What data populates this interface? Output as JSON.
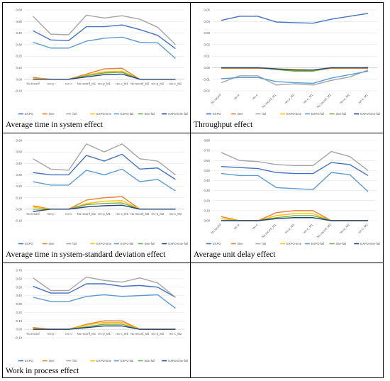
{
  "colors": {
    "EXPO": "#4472c4",
    "time": "#ed7d31",
    "fail": "#a5a5a5",
    "EXPO-time": "#ffc000",
    "EXPO-fail": "#5b9bd5",
    "time-fail": "#70ad47",
    "EXPO-time-fail": "#264478"
  },
  "legend_labels": [
    "EXPO",
    "time",
    "fail",
    "EXPO-time",
    "EXPO-fail",
    "time-fail",
    "EXPO-time-fail"
  ],
  "chart_data": [
    {
      "type": "line",
      "caption": "Average time in system effect",
      "categories": [
        "No reconf",
        "rec-p",
        "rec-c",
        "No reconf_M1",
        "rec-p_M1",
        "rec-c_M1",
        "No reconf_M2",
        "rec-p_M2",
        "rec-c_M2"
      ],
      "ylim": [
        -0.1,
        0.6
      ],
      "yticks": [
        -0.1,
        0.0,
        0.1,
        0.2,
        0.3,
        0.4,
        0.5,
        0.6
      ],
      "ytick_labels": [
        "-0.10",
        "0.00",
        "0.10",
        "0.20",
        "0.30",
        "0.40",
        "0.50",
        "0.60"
      ],
      "series": [
        {
          "name": "EXPO",
          "values": [
            0.42,
            0.34,
            0.335,
            0.455,
            0.455,
            0.47,
            0.43,
            0.38,
            0.265
          ]
        },
        {
          "name": "time",
          "values": [
            0.015,
            0.0,
            0.0,
            0.045,
            0.09,
            0.095,
            0.0,
            0.0,
            0.0
          ]
        },
        {
          "name": "fail",
          "values": [
            0.545,
            0.39,
            0.385,
            0.555,
            0.53,
            0.55,
            0.52,
            0.45,
            0.3
          ]
        },
        {
          "name": "EXPO-time",
          "values": [
            0.005,
            0.0,
            0.0,
            0.035,
            0.065,
            0.07,
            0.0,
            0.0,
            0.0
          ]
        },
        {
          "name": "EXPO-fail",
          "values": [
            0.32,
            0.27,
            0.27,
            0.33,
            0.355,
            0.365,
            0.32,
            0.315,
            0.18
          ]
        },
        {
          "name": "time-fail",
          "values": [
            0.0,
            0.0,
            0.0,
            0.03,
            0.055,
            0.06,
            0.0,
            0.0,
            0.0
          ]
        },
        {
          "name": "EXPO-time-fail",
          "values": [
            0.0,
            0.0,
            0.0,
            0.02,
            0.04,
            0.045,
            0.0,
            0.0,
            0.0
          ]
        }
      ]
    },
    {
      "type": "line",
      "caption": "Throughput effect",
      "categories": [
        "No reconf",
        "rec-p",
        "rec-c",
        "No reconf_M1",
        "rec-p_M1",
        "rec-c_M1",
        "No reconf_M2",
        "rec-p_M2",
        "rec-c_M2"
      ],
      "ylim": [
        -0.02,
        0.05
      ],
      "yticks": [
        -0.02,
        -0.01,
        0.0,
        0.01,
        0.02,
        0.03,
        0.04,
        0.05
      ],
      "ytick_labels": [
        "-0.02",
        "-0.01",
        "0.00",
        "0.01",
        "0.02",
        "0.03",
        "0.04",
        "0.05"
      ],
      "series": [
        {
          "name": "EXPO",
          "values": [
            0.041,
            0.0445,
            0.0445,
            0.0395,
            0.039,
            0.0385,
            0.042,
            0.0445,
            0.047
          ]
        },
        {
          "name": "time",
          "values": [
            -0.0005,
            -0.0005,
            -0.0005,
            -0.001,
            -0.002,
            -0.0025,
            -0.0005,
            -0.0005,
            -0.0005
          ]
        },
        {
          "name": "fail",
          "values": [
            -0.013,
            -0.007,
            -0.007,
            -0.015,
            -0.014,
            -0.015,
            -0.011,
            -0.008,
            -0.002
          ]
        },
        {
          "name": "EXPO-time",
          "values": [
            0.0,
            0.0,
            0.0,
            -0.001,
            -0.0015,
            -0.002,
            0.0,
            0.0,
            0.0
          ]
        },
        {
          "name": "EXPO-fail",
          "values": [
            -0.0095,
            -0.0085,
            -0.0085,
            -0.012,
            -0.013,
            -0.0135,
            -0.009,
            -0.006,
            -0.003
          ]
        },
        {
          "name": "time-fail",
          "values": [
            0.0,
            0.0,
            0.0,
            -0.0015,
            -0.003,
            -0.003,
            0.0,
            0.0,
            0.0
          ]
        },
        {
          "name": "EXPO-time-fail",
          "values": [
            0.0,
            0.0,
            0.0,
            -0.001,
            -0.002,
            -0.002,
            0.0,
            0.0,
            0.0
          ]
        }
      ]
    },
    {
      "type": "line",
      "caption": "Average time in system-standard deviation effect",
      "categories": [
        "No reconf",
        "rec-p",
        "rec-c",
        "No reconf_M1",
        "rec-p_M1",
        "rec-c_M1",
        "No reconf_M2",
        "rec-p_M2",
        "rec-c_M2"
      ],
      "ylim": [
        -0.1,
        0.6
      ],
      "yticks": [
        -0.1,
        0.0,
        0.1,
        0.2,
        0.3,
        0.4,
        0.5,
        0.6
      ],
      "ytick_labels": [
        "-0.10",
        "0.00",
        "0.10",
        "0.20",
        "0.30",
        "0.40",
        "0.50",
        "0.60"
      ],
      "series": [
        {
          "name": "EXPO",
          "values": [
            0.32,
            0.3,
            0.3,
            0.47,
            0.42,
            0.48,
            0.35,
            0.36,
            0.26
          ]
        },
        {
          "name": "time",
          "values": [
            0.03,
            0.0,
            0.0,
            0.08,
            0.1,
            0.11,
            0.0,
            0.0,
            0.0
          ]
        },
        {
          "name": "fail",
          "values": [
            0.44,
            0.35,
            0.34,
            0.57,
            0.5,
            0.57,
            0.44,
            0.42,
            0.3
          ]
        },
        {
          "name": "EXPO-time",
          "values": [
            0.02,
            0.0,
            0.0,
            0.05,
            0.07,
            0.075,
            0.0,
            0.0,
            0.0
          ]
        },
        {
          "name": "EXPO-fail",
          "values": [
            0.24,
            0.21,
            0.21,
            0.34,
            0.3,
            0.35,
            0.24,
            0.26,
            0.16
          ]
        },
        {
          "name": "time-fail",
          "values": [
            0.0,
            0.0,
            0.0,
            0.04,
            0.05,
            0.055,
            0.0,
            0.0,
            0.0
          ]
        },
        {
          "name": "EXPO-time-fail",
          "values": [
            -0.02,
            0.0,
            0.0,
            0.02,
            0.03,
            0.035,
            0.0,
            0.0,
            0.0
          ]
        }
      ]
    },
    {
      "type": "line",
      "caption": "Average unit delay effect",
      "categories": [
        "No reconf",
        "rec-p",
        "rec-c",
        "No reconf_M1",
        "rec-p_M1",
        "rec-c_M1",
        "No reconf_M2",
        "rec-p_M2",
        "rec-c_M2"
      ],
      "ylim": [
        0,
        0.8
      ],
      "yticks": [
        0.0,
        0.1,
        0.2,
        0.3,
        0.4,
        0.5,
        0.6,
        0.7,
        0.8
      ],
      "ytick_labels": [
        "0.00",
        "0.10",
        "0.20",
        "0.30",
        "0.40",
        "0.50",
        "0.60",
        "0.70",
        "0.80"
      ],
      "series": [
        {
          "name": "EXPO",
          "values": [
            0.54,
            0.53,
            0.52,
            0.48,
            0.47,
            0.47,
            0.58,
            0.56,
            0.45
          ]
        },
        {
          "name": "time",
          "values": [
            0.04,
            0.0,
            0.0,
            0.08,
            0.1,
            0.1,
            0.0,
            0.0,
            0.0
          ]
        },
        {
          "name": "fail",
          "values": [
            0.68,
            0.6,
            0.59,
            0.56,
            0.55,
            0.55,
            0.69,
            0.64,
            0.5
          ]
        },
        {
          "name": "EXPO-time",
          "values": [
            0.02,
            0.0,
            0.0,
            0.05,
            0.07,
            0.07,
            0.0,
            0.0,
            0.0
          ]
        },
        {
          "name": "EXPO-fail",
          "values": [
            0.47,
            0.45,
            0.45,
            0.33,
            0.32,
            0.31,
            0.48,
            0.46,
            0.29
          ]
        },
        {
          "name": "time-fail",
          "values": [
            0.0,
            0.0,
            0.0,
            0.03,
            0.05,
            0.05,
            0.0,
            0.0,
            0.0
          ]
        },
        {
          "name": "EXPO-time-fail",
          "values": [
            0.0,
            0.0,
            0.0,
            0.02,
            0.03,
            0.03,
            0.0,
            0.0,
            0.0
          ]
        }
      ]
    },
    {
      "type": "line",
      "caption": "Work in process effect",
      "categories": [
        "No reconf",
        "rec-p",
        "rec-c",
        "No reconf_M1",
        "rec-p_M1",
        "rec-c_M1",
        "No reconf_M2",
        "rec-p_M2",
        "rec-c_M2"
      ],
      "ylim": [
        -0.1,
        0.7
      ],
      "yticks": [
        -0.1,
        0.0,
        0.1,
        0.2,
        0.3,
        0.4,
        0.5,
        0.6,
        0.7
      ],
      "ytick_labels": [
        "-0.10",
        "0.00",
        "0.10",
        "0.20",
        "0.30",
        "0.40",
        "0.50",
        "0.60",
        "0.70"
      ],
      "series": [
        {
          "name": "EXPO",
          "values": [
            0.51,
            0.43,
            0.43,
            0.54,
            0.54,
            0.51,
            0.52,
            0.5,
            0.38
          ]
        },
        {
          "name": "time",
          "values": [
            0.02,
            0.0,
            0.0,
            0.06,
            0.1,
            0.1,
            0.0,
            0.0,
            0.0
          ]
        },
        {
          "name": "fail",
          "values": [
            0.61,
            0.46,
            0.46,
            0.62,
            0.58,
            0.56,
            0.61,
            0.55,
            0.38
          ]
        },
        {
          "name": "EXPO-time",
          "values": [
            0.01,
            0.0,
            0.0,
            0.05,
            0.08,
            0.08,
            0.0,
            0.0,
            0.0
          ]
        },
        {
          "name": "EXPO-fail",
          "values": [
            0.38,
            0.33,
            0.33,
            0.39,
            0.41,
            0.39,
            0.4,
            0.41,
            0.25
          ]
        },
        {
          "name": "time-fail",
          "values": [
            0.0,
            0.0,
            0.0,
            0.03,
            0.06,
            0.06,
            0.0,
            0.0,
            0.0
          ]
        },
        {
          "name": "EXPO-time-fail",
          "values": [
            0.0,
            0.0,
            0.0,
            0.02,
            0.04,
            0.04,
            0.0,
            0.0,
            0.0
          ]
        }
      ]
    }
  ]
}
